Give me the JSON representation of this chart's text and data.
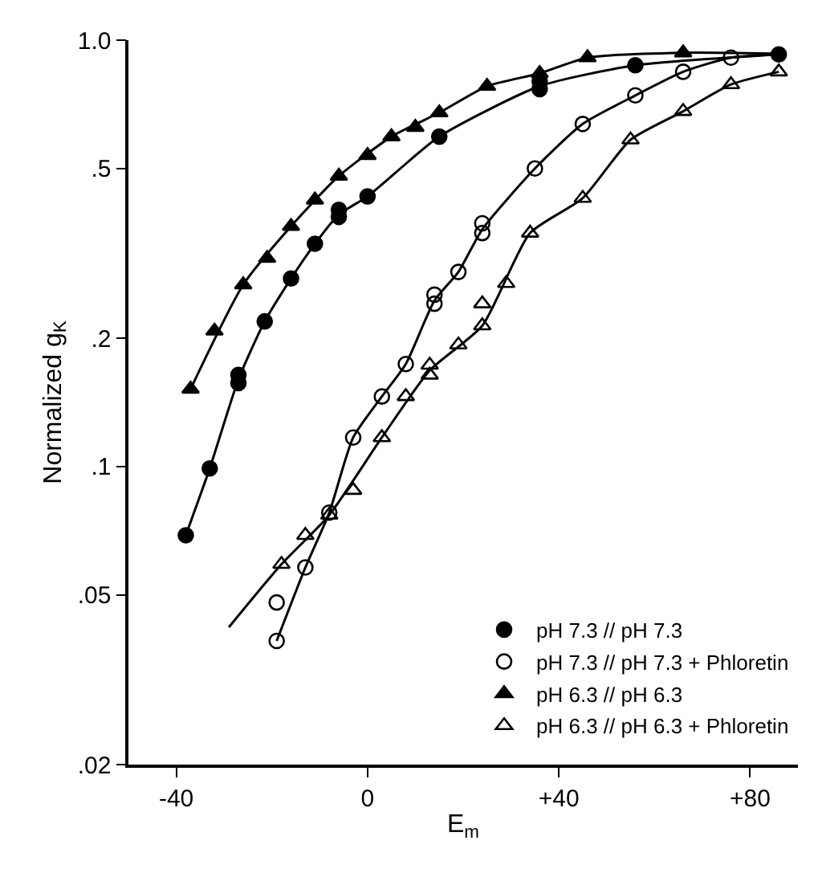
{
  "chart_data": {
    "type": "scatter",
    "xlabel": "E$_{m}$",
    "ylabel": "Normalized g$_{K}$",
    "xlim": [
      -50,
      90
    ],
    "xticks": [
      -40,
      0,
      {
        "value": 40,
        "label": "+40"
      },
      {
        "value": 80,
        "label": "+80"
      }
    ],
    "ylim": [
      0.02,
      1.0
    ],
    "yticks": [
      {
        "value": 0.02,
        "label": ".02"
      },
      {
        "value": 0.05,
        "label": ".05"
      },
      {
        "value": 0.1,
        "label": ".1"
      },
      {
        "value": 0.2,
        "label": ".2"
      },
      {
        "value": 0.5,
        "label": ".5"
      },
      {
        "value": 1.0,
        "label": "1.0"
      }
    ],
    "log": "y",
    "legend": "bottom right",
    "series": [
      {
        "name": "pH 7.3 // pH 7.3",
        "marker": "circle",
        "color": "#000000",
        "x": [
          -38,
          -33,
          -27,
          -27,
          -21.5,
          -16,
          -11,
          -6,
          -6,
          0,
          15,
          36,
          36,
          56,
          86
        ],
        "values": [
          0.069,
          0.099,
          0.157,
          0.164,
          0.219,
          0.276,
          0.333,
          0.385,
          0.4,
          0.43,
          0.594,
          0.768,
          0.8,
          0.873,
          0.926
        ]
      },
      {
        "name": "pH 7.3 // pH 7.3 + Phloretin",
        "marker": "circle-open",
        "color": "#000000",
        "x": [
          -19,
          -19,
          -13,
          -8,
          -3,
          3,
          8,
          14,
          14,
          19,
          24,
          24,
          35,
          45,
          56,
          66,
          76
        ],
        "values": [
          0.039,
          0.048,
          0.058,
          0.078,
          0.117,
          0.146,
          0.174,
          0.241,
          0.253,
          0.286,
          0.353,
          0.372,
          0.5,
          0.636,
          0.742,
          0.843,
          0.91
        ]
      },
      {
        "name": "pH 6.3 // pH 6.3",
        "marker": "triangle",
        "color": "#000000",
        "x": [
          -37,
          -32,
          -26,
          -21,
          -16,
          -11,
          -6,
          0,
          5,
          10,
          15,
          25,
          36,
          46,
          66
        ],
        "values": [
          0.152,
          0.208,
          0.267,
          0.308,
          0.366,
          0.422,
          0.48,
          0.537,
          0.594,
          0.625,
          0.676,
          0.78,
          0.836,
          0.91,
          0.934
        ]
      },
      {
        "name": "pH 6.3 // pH 6.3 + Phloretin",
        "marker": "triangle-open",
        "color": "#000000",
        "x": [
          -18,
          -13,
          -8,
          -3,
          3,
          8,
          13,
          13,
          19,
          24,
          24,
          29,
          34,
          45,
          55,
          66,
          76,
          86
        ],
        "values": [
          0.059,
          0.069,
          0.077,
          0.088,
          0.117,
          0.146,
          0.164,
          0.173,
          0.193,
          0.214,
          0.241,
          0.269,
          0.353,
          0.426,
          0.584,
          0.681,
          0.787,
          0.843
        ]
      },
      {
        "type": "line",
        "color": "#000000",
        "x": [
          -38,
          -33,
          -27,
          -21.5,
          -16,
          -11,
          -6,
          0,
          15,
          36,
          56,
          86
        ],
        "values": [
          0.069,
          0.099,
          0.16,
          0.219,
          0.276,
          0.333,
          0.39,
          0.43,
          0.594,
          0.78,
          0.873,
          0.926
        ]
      },
      {
        "type": "line",
        "color": "#000000",
        "x": [
          -19,
          -13,
          -8,
          -3,
          3,
          8,
          14,
          19,
          24,
          35,
          45,
          56,
          66,
          76,
          86
        ],
        "values": [
          0.039,
          0.058,
          0.078,
          0.117,
          0.146,
          0.174,
          0.245,
          0.286,
          0.36,
          0.5,
          0.636,
          0.742,
          0.843,
          0.91,
          0.926
        ]
      },
      {
        "type": "line",
        "color": "#000000",
        "x": [
          -37,
          -26,
          -16,
          -6,
          5,
          15,
          25,
          36,
          46,
          66,
          85
        ],
        "values": [
          0.152,
          0.267,
          0.366,
          0.48,
          0.594,
          0.676,
          0.78,
          0.836,
          0.91,
          0.934,
          0.93
        ]
      },
      {
        "type": "line",
        "color": "#000000",
        "x": [
          -29,
          -18,
          -8,
          3,
          13,
          24,
          34,
          45,
          55,
          66,
          76,
          86
        ],
        "values": [
          0.042,
          0.059,
          0.077,
          0.117,
          0.168,
          0.214,
          0.353,
          0.426,
          0.584,
          0.681,
          0.787,
          0.843
        ]
      }
    ]
  }
}
